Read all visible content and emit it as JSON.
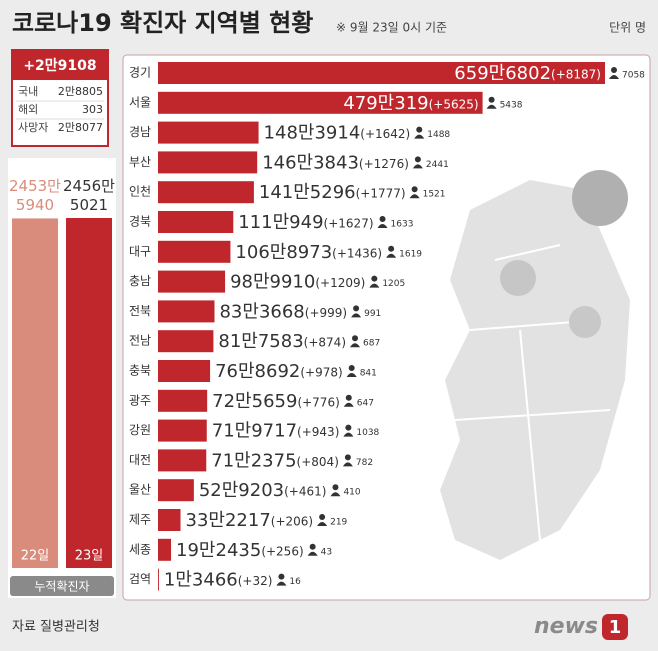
{
  "header": {
    "title": "코로나19 확진자 지역별 현황",
    "subtitle": "※ 9월 23일 0시 기준",
    "unit": "단위 명"
  },
  "summary": {
    "total": "+2만9108",
    "rows": [
      [
        "국내",
        "2만8805"
      ],
      [
        "해외",
        "303"
      ],
      [
        "사망자",
        "2만8077"
      ]
    ],
    "cumulative_label": "누적확진자"
  },
  "chart_data": [
    {
      "type": "bar",
      "orientation": "horizontal",
      "color": "#c0272d",
      "categories": [
        "경기",
        "서울",
        "경남",
        "부산",
        "인천",
        "경북",
        "대구",
        "충남",
        "전북",
        "전남",
        "충북",
        "광주",
        "강원",
        "대전",
        "울산",
        "제주",
        "세종",
        "검역"
      ],
      "values": [
        6596802,
        4790319,
        1483914,
        1463843,
        1415296,
        1110949,
        1068973,
        989910,
        833668,
        817583,
        768692,
        725659,
        719717,
        712375,
        529203,
        332217,
        192435,
        13466
      ],
      "value_labels": [
        "659만6802",
        "479만319",
        "148만3914",
        "146만3843",
        "141만5296",
        "111만949",
        "106만8973",
        "98만9910",
        "83만3668",
        "81만7583",
        "76만8692",
        "72만5659",
        "71만9717",
        "71만2375",
        "52만9203",
        "33만2217",
        "19만2435",
        "1만3466"
      ],
      "increase_labels": [
        "(+8187)",
        "(+5625)",
        "(+1642)",
        "(+1276)",
        "(+1777)",
        "(+1627)",
        "(+1436)",
        "(+1209)",
        "(+999)",
        "(+874)",
        "(+978)",
        "(+776)",
        "(+943)",
        "(+804)",
        "(+461)",
        "(+206)",
        "(+256)",
        "(+32)"
      ],
      "deaths": [
        7058,
        5438,
        1488,
        2441,
        1521,
        1633,
        1619,
        1205,
        991,
        687,
        841,
        647,
        1038,
        782,
        410,
        219,
        43,
        16
      ]
    },
    {
      "type": "bar",
      "orientation": "vertical",
      "colors": [
        "#d98c7c",
        "#c0272d"
      ],
      "categories": [
        "22일",
        "23일"
      ],
      "values": [
        24535940,
        24565021
      ],
      "value_labels": [
        "2453만\n5940",
        "2456만\n5021"
      ]
    }
  ],
  "footer": {
    "source": "자료  질병관리청",
    "logo": "news",
    "logo_mark": "1"
  }
}
